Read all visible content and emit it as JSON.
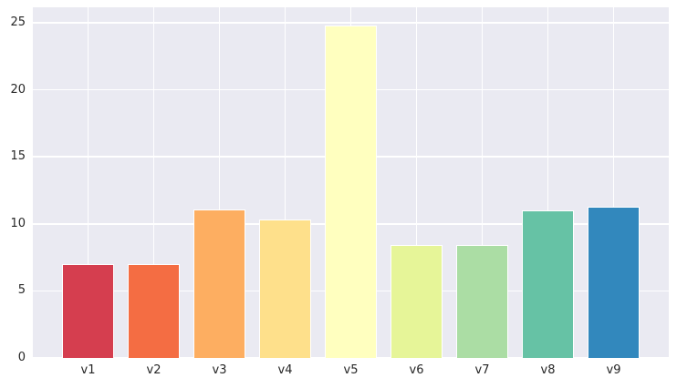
{
  "figure": {
    "background_color": "#ffffff",
    "plot_background_color": "#eaeaf2",
    "grid_color": "#ffffff",
    "tick_label_color": "#262626",
    "bar_edge_color": "#ffffff"
  },
  "chart_data": {
    "type": "bar",
    "title": "",
    "xlabel": "",
    "ylabel": "",
    "categories": [
      "v1",
      "v2",
      "v3",
      "v4",
      "v5",
      "v6",
      "v7",
      "v8",
      "v9"
    ],
    "values": [
      7.0,
      7.0,
      11.1,
      10.3,
      24.8,
      8.4,
      8.4,
      11.0,
      11.3
    ],
    "bar_colors": [
      "#d53e4f",
      "#f46d43",
      "#fdae61",
      "#fee08b",
      "#ffffbf",
      "#e6f598",
      "#abdda4",
      "#66c2a5",
      "#3288bd"
    ],
    "yticks": [
      0,
      5,
      10,
      15,
      20,
      25
    ],
    "ylim": [
      0,
      26.15
    ],
    "grid": "both",
    "legend_position": "none",
    "bar_width_fraction": 0.8
  }
}
